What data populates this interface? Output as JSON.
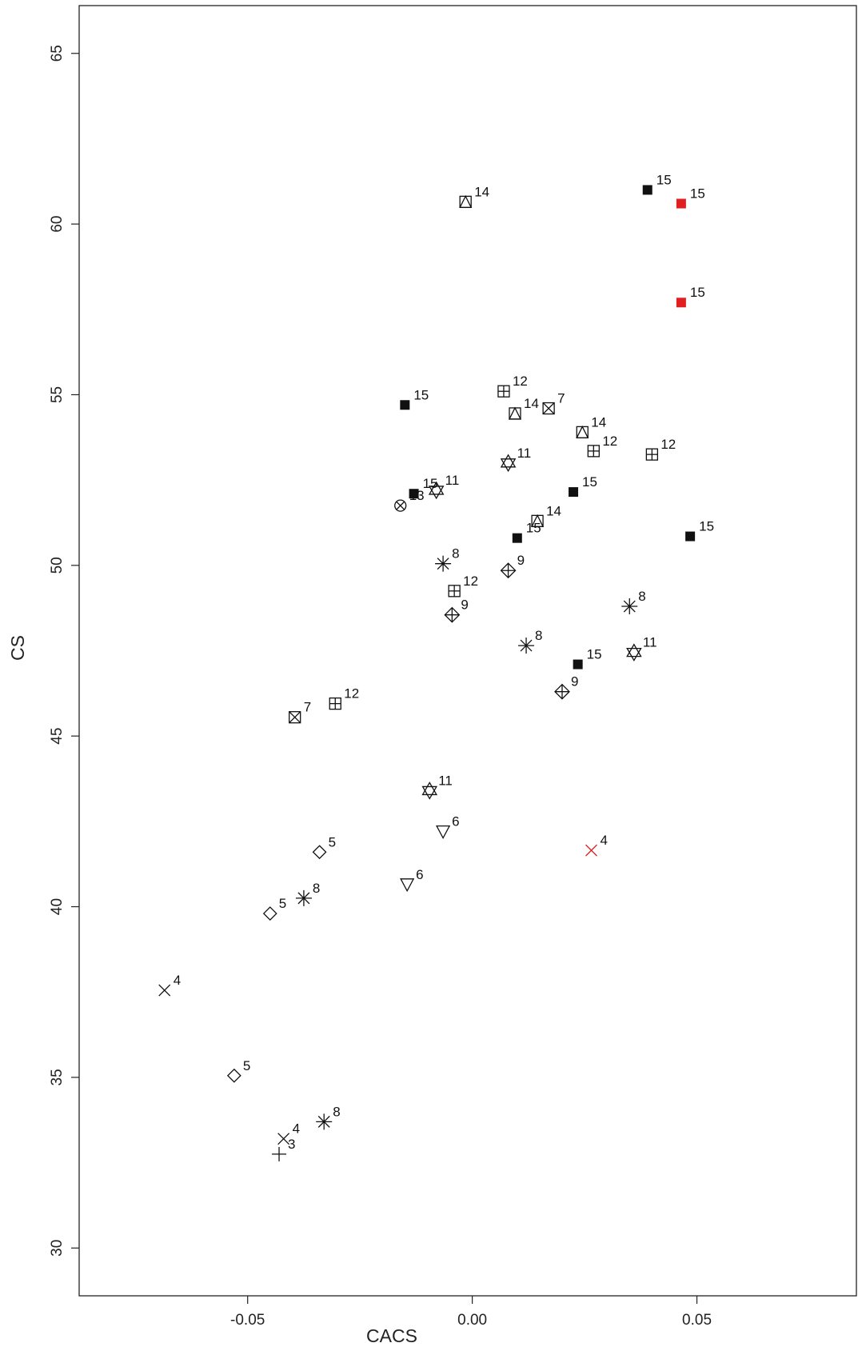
{
  "chart_data": {
    "type": "scatter",
    "xlabel": "CACS",
    "ylabel": "CS",
    "xlim": [
      -0.0875,
      0.0855
    ],
    "ylim": [
      28.6,
      66.4
    ],
    "xticks": [
      -0.05,
      0.0,
      0.05
    ],
    "xtick_labels": [
      "-0.05",
      "0.00",
      "0.05"
    ],
    "yticks": [
      30,
      35,
      40,
      45,
      50,
      55,
      60,
      65
    ],
    "ytick_labels": [
      "30",
      "35",
      "40",
      "45",
      "50",
      "55",
      "60",
      "65"
    ],
    "grid": false,
    "colors": {
      "default": "#111111",
      "highlight": "#e02020"
    },
    "points": [
      {
        "x": 0.039,
        "y": 61.0,
        "label": "15",
        "marker": "filled-square",
        "color": "default"
      },
      {
        "x": 0.0465,
        "y": 60.6,
        "label": "15",
        "marker": "filled-square",
        "color": "highlight"
      },
      {
        "x": 0.0465,
        "y": 57.7,
        "label": "15",
        "marker": "filled-square",
        "color": "highlight"
      },
      {
        "x": -0.0015,
        "y": 60.65,
        "label": "14",
        "marker": "square-triangle",
        "color": "default"
      },
      {
        "x": -0.015,
        "y": 54.7,
        "label": "15",
        "marker": "filled-square",
        "color": "default"
      },
      {
        "x": 0.007,
        "y": 55.1,
        "label": "12",
        "marker": "square-plus",
        "color": "default"
      },
      {
        "x": 0.0095,
        "y": 54.45,
        "label": "14",
        "marker": "square-triangle",
        "color": "default"
      },
      {
        "x": 0.017,
        "y": 54.6,
        "label": "7",
        "marker": "square-x",
        "color": "default"
      },
      {
        "x": 0.0245,
        "y": 53.9,
        "label": "14",
        "marker": "square-triangle",
        "color": "default"
      },
      {
        "x": 0.027,
        "y": 53.35,
        "label": "12",
        "marker": "square-plus",
        "color": "default"
      },
      {
        "x": 0.04,
        "y": 53.25,
        "label": "12",
        "marker": "square-plus",
        "color": "default"
      },
      {
        "x": 0.008,
        "y": 53.0,
        "label": "11",
        "marker": "star-of-david",
        "color": "default"
      },
      {
        "x": -0.013,
        "y": 52.1,
        "label": "15",
        "marker": "filled-square",
        "color": "default"
      },
      {
        "x": -0.008,
        "y": 52.2,
        "label": "11",
        "marker": "star-of-david",
        "color": "default"
      },
      {
        "x": -0.016,
        "y": 51.75,
        "label": "13",
        "marker": "circle-x",
        "color": "default"
      },
      {
        "x": 0.0225,
        "y": 52.15,
        "label": "15",
        "marker": "filled-square",
        "color": "default"
      },
      {
        "x": 0.0145,
        "y": 51.3,
        "label": "14",
        "marker": "square-triangle",
        "color": "default"
      },
      {
        "x": 0.01,
        "y": 50.8,
        "label": "15",
        "marker": "filled-square",
        "color": "default"
      },
      {
        "x": 0.0485,
        "y": 50.85,
        "label": "15",
        "marker": "filled-square",
        "color": "default"
      },
      {
        "x": -0.0065,
        "y": 50.05,
        "label": "8",
        "marker": "asterisk",
        "color": "default"
      },
      {
        "x": 0.008,
        "y": 49.85,
        "label": "9",
        "marker": "diamond-plus",
        "color": "default"
      },
      {
        "x": -0.004,
        "y": 49.25,
        "label": "12",
        "marker": "square-plus",
        "color": "default"
      },
      {
        "x": -0.0045,
        "y": 48.55,
        "label": "9",
        "marker": "diamond-plus",
        "color": "default"
      },
      {
        "x": 0.035,
        "y": 48.8,
        "label": "8",
        "marker": "asterisk",
        "color": "default"
      },
      {
        "x": 0.012,
        "y": 47.65,
        "label": "8",
        "marker": "asterisk",
        "color": "default"
      },
      {
        "x": 0.036,
        "y": 47.45,
        "label": "11",
        "marker": "star-of-david",
        "color": "default"
      },
      {
        "x": 0.0235,
        "y": 47.1,
        "label": "15",
        "marker": "filled-square",
        "color": "default"
      },
      {
        "x": 0.02,
        "y": 46.3,
        "label": "9",
        "marker": "diamond-plus",
        "color": "default"
      },
      {
        "x": -0.0305,
        "y": 45.95,
        "label": "12",
        "marker": "square-plus",
        "color": "default"
      },
      {
        "x": -0.0395,
        "y": 45.55,
        "label": "7",
        "marker": "square-x",
        "color": "default"
      },
      {
        "x": -0.0095,
        "y": 43.4,
        "label": "11",
        "marker": "star-of-david",
        "color": "default"
      },
      {
        "x": -0.0065,
        "y": 42.2,
        "label": "6",
        "marker": "triangle-down",
        "color": "default"
      },
      {
        "x": 0.0265,
        "y": 41.65,
        "label": "4",
        "marker": "x",
        "color": "highlight"
      },
      {
        "x": -0.034,
        "y": 41.6,
        "label": "5",
        "marker": "diamond",
        "color": "default"
      },
      {
        "x": -0.0145,
        "y": 40.65,
        "label": "6",
        "marker": "triangle-down",
        "color": "default"
      },
      {
        "x": -0.0375,
        "y": 40.25,
        "label": "8",
        "marker": "asterisk",
        "color": "default"
      },
      {
        "x": -0.045,
        "y": 39.8,
        "label": "5",
        "marker": "diamond",
        "color": "default"
      },
      {
        "x": -0.0685,
        "y": 37.55,
        "label": "4",
        "marker": "x",
        "color": "default"
      },
      {
        "x": -0.053,
        "y": 35.05,
        "label": "5",
        "marker": "diamond",
        "color": "default"
      },
      {
        "x": -0.033,
        "y": 33.7,
        "label": "8",
        "marker": "asterisk",
        "color": "default"
      },
      {
        "x": -0.042,
        "y": 33.2,
        "label": "4",
        "marker": "x",
        "color": "default"
      },
      {
        "x": -0.043,
        "y": 32.75,
        "label": "3",
        "marker": "plus",
        "color": "default"
      }
    ]
  }
}
